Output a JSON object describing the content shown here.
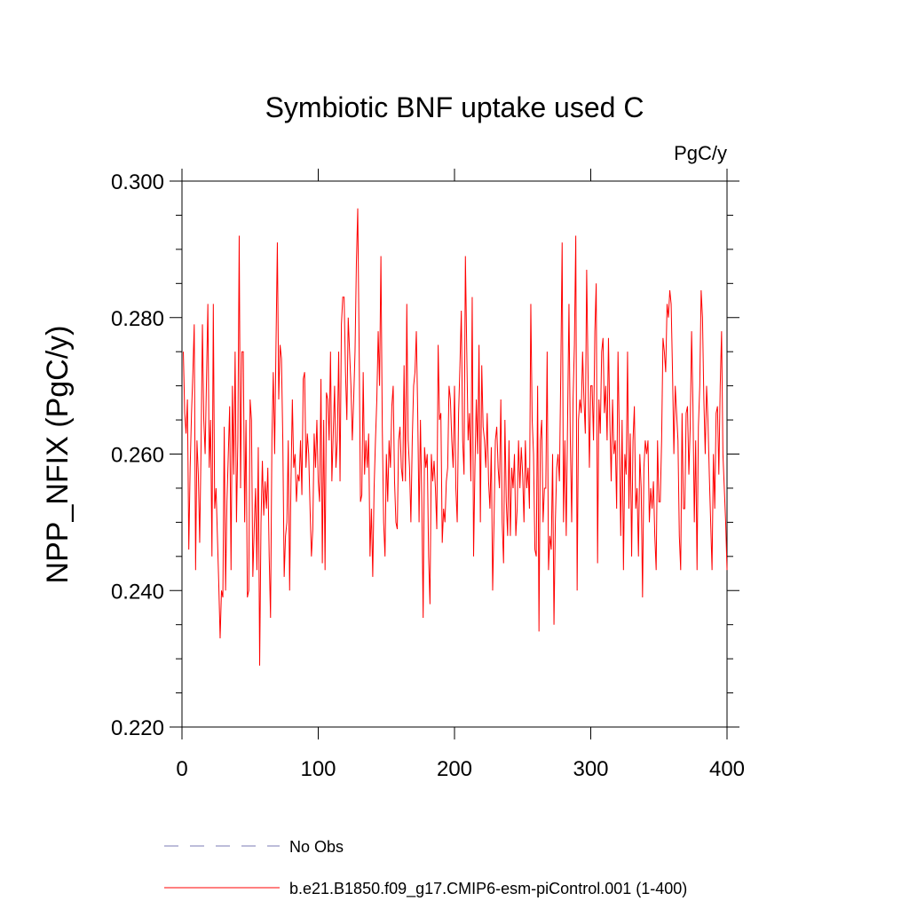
{
  "chart_data": {
    "type": "line",
    "title": "Symbiotic BNF uptake used C",
    "units": "PgC/y",
    "y_label": "NPP_NFIX  (PgC/y)",
    "xlim": [
      0,
      400
    ],
    "xticks": [
      0,
      100,
      200,
      300,
      400
    ],
    "ylim": [
      0.22,
      0.3
    ],
    "yticks": [
      {
        "value": 0.22,
        "label": "0.220"
      },
      {
        "value": 0.24,
        "label": "0.240"
      },
      {
        "value": 0.26,
        "label": "0.260"
      },
      {
        "value": 0.28,
        "label": "0.280"
      },
      {
        "value": 0.3,
        "label": "0.300"
      }
    ],
    "yminorticks": [
      0.225,
      0.23,
      0.235,
      0.245,
      0.25,
      0.255,
      0.265,
      0.27,
      0.275,
      0.285,
      0.29,
      0.295
    ],
    "extra_legend": [
      {
        "name": "No Obs",
        "color": "#7b7bb5",
        "style": "dashed"
      }
    ],
    "x": [
      1,
      2,
      3,
      4,
      5,
      6,
      7,
      8,
      9,
      10,
      11,
      12,
      13,
      14,
      15,
      16,
      17,
      18,
      19,
      20,
      21,
      22,
      23,
      24,
      25,
      26,
      27,
      28,
      29,
      30,
      31,
      32,
      33,
      34,
      35,
      36,
      37,
      38,
      39,
      40,
      41,
      42,
      43,
      44,
      45,
      46,
      47,
      48,
      49,
      50,
      51,
      52,
      53,
      54,
      55,
      56,
      57,
      58,
      59,
      60,
      61,
      62,
      63,
      64,
      65,
      66,
      67,
      68,
      69,
      70,
      71,
      72,
      73,
      74,
      75,
      76,
      77,
      78,
      79,
      80,
      81,
      82,
      83,
      84,
      85,
      86,
      87,
      88,
      89,
      90,
      91,
      92,
      93,
      94,
      95,
      96,
      97,
      98,
      99,
      100,
      101,
      102,
      103,
      104,
      105,
      106,
      107,
      108,
      109,
      110,
      111,
      112,
      113,
      114,
      115,
      116,
      117,
      118,
      119,
      120,
      121,
      122,
      123,
      124,
      125,
      126,
      127,
      128,
      129,
      130,
      131,
      132,
      133,
      134,
      135,
      136,
      137,
      138,
      139,
      140,
      141,
      142,
      143,
      144,
      145,
      146,
      147,
      148,
      149,
      150,
      151,
      152,
      153,
      154,
      155,
      156,
      157,
      158,
      159,
      160,
      161,
      162,
      163,
      164,
      165,
      166,
      167,
      168,
      169,
      170,
      171,
      172,
      173,
      174,
      175,
      176,
      177,
      178,
      179,
      180,
      181,
      182,
      183,
      184,
      185,
      186,
      187,
      188,
      189,
      190,
      191,
      192,
      193,
      194,
      195,
      196,
      197,
      198,
      199,
      200,
      201,
      202,
      203,
      204,
      205,
      206,
      207,
      208,
      209,
      210,
      211,
      212,
      213,
      214,
      215,
      216,
      217,
      218,
      219,
      220,
      221,
      222,
      223,
      224,
      225,
      226,
      227,
      228,
      229,
      230,
      231,
      232,
      233,
      234,
      235,
      236,
      237,
      238,
      239,
      240,
      241,
      242,
      243,
      244,
      245,
      246,
      247,
      248,
      249,
      250,
      251,
      252,
      253,
      254,
      255,
      256,
      257,
      258,
      259,
      260,
      261,
      262,
      263,
      264,
      265,
      266,
      267,
      268,
      269,
      270,
      271,
      272,
      273,
      274,
      275,
      276,
      277,
      278,
      279,
      280,
      281,
      282,
      283,
      284,
      285,
      286,
      287,
      288,
      289,
      290,
      291,
      292,
      293,
      294,
      295,
      296,
      297,
      298,
      299,
      300,
      301,
      302,
      303,
      304,
      305,
      306,
      307,
      308,
      309,
      310,
      311,
      312,
      313,
      314,
      315,
      316,
      317,
      318,
      319,
      320,
      321,
      322,
      323,
      324,
      325,
      326,
      327,
      328,
      329,
      330,
      331,
      332,
      333,
      334,
      335,
      336,
      337,
      338,
      339,
      340,
      341,
      342,
      343,
      344,
      345,
      346,
      347,
      348,
      349,
      350,
      351,
      352,
      353,
      354,
      355,
      356,
      357,
      358,
      359,
      360,
      361,
      362,
      363,
      364,
      365,
      366,
      367,
      368,
      369,
      370,
      371,
      372,
      373,
      374,
      375,
      376,
      377,
      378,
      379,
      380,
      381,
      382,
      383,
      384,
      385,
      386,
      387,
      388,
      389,
      390,
      391,
      392,
      393,
      394,
      395,
      396,
      397,
      398,
      399,
      400
    ],
    "series": [
      {
        "name": "b.e21.B1850.f09_g17.CMIP6-esm-piControl.001 (1-400)",
        "color": "#ff0000",
        "values": [
          0.275,
          0.266,
          0.263,
          0.268,
          0.246,
          0.258,
          0.266,
          0.272,
          0.279,
          0.243,
          0.262,
          0.257,
          0.247,
          0.261,
          0.279,
          0.265,
          0.26,
          0.271,
          0.282,
          0.258,
          0.265,
          0.245,
          0.282,
          0.252,
          0.255,
          0.248,
          0.241,
          0.233,
          0.24,
          0.239,
          0.264,
          0.24,
          0.253,
          0.26,
          0.267,
          0.243,
          0.27,
          0.257,
          0.275,
          0.25,
          0.262,
          0.292,
          0.255,
          0.275,
          0.275,
          0.25,
          0.265,
          0.239,
          0.24,
          0.268,
          0.265,
          0.242,
          0.249,
          0.255,
          0.243,
          0.261,
          0.229,
          0.25,
          0.259,
          0.251,
          0.256,
          0.252,
          0.258,
          0.245,
          0.236,
          0.262,
          0.272,
          0.26,
          0.276,
          0.291,
          0.268,
          0.276,
          0.274,
          0.262,
          0.242,
          0.248,
          0.25,
          0.262,
          0.24,
          0.256,
          0.268,
          0.258,
          0.26,
          0.253,
          0.257,
          0.256,
          0.262,
          0.254,
          0.271,
          0.272,
          0.258,
          0.263,
          0.26,
          0.252,
          0.245,
          0.249,
          0.263,
          0.258,
          0.265,
          0.256,
          0.253,
          0.271,
          0.244,
          0.265,
          0.243,
          0.269,
          0.268,
          0.262,
          0.275,
          0.256,
          0.263,
          0.27,
          0.258,
          0.262,
          0.275,
          0.256,
          0.279,
          0.283,
          0.283,
          0.272,
          0.265,
          0.28,
          0.275,
          0.27,
          0.262,
          0.268,
          0.275,
          0.288,
          0.296,
          0.276,
          0.253,
          0.254,
          0.272,
          0.257,
          0.262,
          0.258,
          0.263,
          0.245,
          0.252,
          0.242,
          0.255,
          0.262,
          0.268,
          0.278,
          0.27,
          0.289,
          0.264,
          0.25,
          0.245,
          0.26,
          0.253,
          0.262,
          0.258,
          0.267,
          0.27,
          0.256,
          0.25,
          0.249,
          0.262,
          0.264,
          0.258,
          0.256,
          0.273,
          0.256,
          0.282,
          0.262,
          0.258,
          0.25,
          0.262,
          0.27,
          0.272,
          0.278,
          0.266,
          0.25,
          0.265,
          0.253,
          0.236,
          0.261,
          0.258,
          0.26,
          0.245,
          0.238,
          0.26,
          0.256,
          0.259,
          0.255,
          0.249,
          0.276,
          0.265,
          0.266,
          0.247,
          0.252,
          0.25,
          0.256,
          0.258,
          0.27,
          0.268,
          0.262,
          0.258,
          0.27,
          0.255,
          0.25,
          0.266,
          0.273,
          0.281,
          0.262,
          0.257,
          0.289,
          0.275,
          0.262,
          0.266,
          0.256,
          0.283,
          0.245,
          0.258,
          0.268,
          0.26,
          0.276,
          0.25,
          0.273,
          0.264,
          0.262,
          0.258,
          0.266,
          0.256,
          0.252,
          0.261,
          0.24,
          0.25,
          0.262,
          0.264,
          0.258,
          0.255,
          0.268,
          0.25,
          0.244,
          0.265,
          0.253,
          0.248,
          0.262,
          0.248,
          0.258,
          0.255,
          0.26,
          0.248,
          0.252,
          0.262,
          0.255,
          0.261,
          0.257,
          0.25,
          0.262,
          0.255,
          0.258,
          0.252,
          0.282,
          0.265,
          0.26,
          0.246,
          0.245,
          0.27,
          0.234,
          0.262,
          0.265,
          0.25,
          0.255,
          0.255,
          0.275,
          0.243,
          0.248,
          0.246,
          0.26,
          0.235,
          0.25,
          0.258,
          0.26,
          0.256,
          0.272,
          0.291,
          0.25,
          0.262,
          0.248,
          0.265,
          0.282,
          0.262,
          0.25,
          0.268,
          0.276,
          0.292,
          0.24,
          0.265,
          0.268,
          0.266,
          0.275,
          0.268,
          0.263,
          0.287,
          0.272,
          0.258,
          0.27,
          0.27,
          0.262,
          0.278,
          0.285,
          0.244,
          0.268,
          0.263,
          0.275,
          0.277,
          0.266,
          0.27,
          0.262,
          0.277,
          0.265,
          0.256,
          0.268,
          0.26,
          0.262,
          0.252,
          0.275,
          0.262,
          0.248,
          0.265,
          0.243,
          0.26,
          0.257,
          0.275,
          0.252,
          0.263,
          0.245,
          0.262,
          0.267,
          0.252,
          0.255,
          0.245,
          0.26,
          0.255,
          0.239,
          0.258,
          0.262,
          0.26,
          0.262,
          0.25,
          0.255,
          0.252,
          0.256,
          0.248,
          0.243,
          0.262,
          0.253,
          0.253,
          0.262,
          0.277,
          0.275,
          0.272,
          0.282,
          0.28,
          0.284,
          0.282,
          0.272,
          0.26,
          0.27,
          0.266,
          0.262,
          0.248,
          0.243,
          0.266,
          0.252,
          0.252,
          0.266,
          0.267,
          0.257,
          0.264,
          0.278,
          0.267,
          0.25,
          0.262,
          0.243,
          0.264,
          0.27,
          0.284,
          0.28,
          0.268,
          0.26,
          0.27,
          0.265,
          0.257,
          0.25,
          0.243,
          0.26,
          0.252,
          0.266,
          0.267,
          0.257,
          0.27,
          0.278,
          0.26,
          0.255,
          0.25,
          0.243
        ]
      }
    ]
  }
}
